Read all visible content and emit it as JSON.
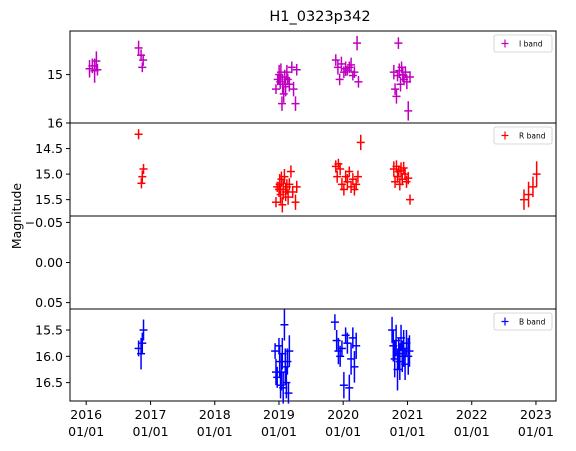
{
  "chart_data": {
    "type": "scatter",
    "title": "H1_0323p342",
    "ylabel": "Magnitude",
    "xlabel": "",
    "x_ticks": [
      "2016\n01/01",
      "2017\n01/01",
      "2018\n01/01",
      "2019\n01/01",
      "2020\n01/01",
      "2021\n01/01",
      "2022\n01/01",
      "2023\n01/01"
    ],
    "x_range": [
      "2015-10-01",
      "2023-04-25"
    ],
    "y_inverted": true,
    "grid": false,
    "panels": [
      {
        "name": "I band",
        "legend": "I band",
        "legend_position": "top-right",
        "color": "#c000c0",
        "ylim": [
          16.0,
          14.1
        ],
        "yticks": [
          "15",
          "16"
        ],
        "points": [
          {
            "x": "2016-01-20",
            "y": 14.88,
            "e": 0.18
          },
          {
            "x": "2016-02-05",
            "y": 14.82,
            "e": 0.15
          },
          {
            "x": "2016-02-18",
            "y": 14.92,
            "e": 0.25
          },
          {
            "x": "2016-02-28",
            "y": 14.72,
            "e": 0.2
          },
          {
            "x": "2016-03-05",
            "y": 14.9,
            "e": 0.12
          },
          {
            "x": "2016-10-25",
            "y": 14.45,
            "e": 0.15
          },
          {
            "x": "2016-11-08",
            "y": 14.6,
            "e": 0.12
          },
          {
            "x": "2016-11-15",
            "y": 14.85,
            "e": 0.1
          },
          {
            "x": "2016-11-20",
            "y": 14.7,
            "e": 0.12
          },
          {
            "x": "2018-12-15",
            "y": 15.3,
            "e": 0.1
          },
          {
            "x": "2018-12-25",
            "y": 15.1,
            "e": 0.12
          },
          {
            "x": "2019-01-02",
            "y": 15.0,
            "e": 0.2
          },
          {
            "x": "2019-01-08",
            "y": 15.15,
            "e": 0.15
          },
          {
            "x": "2019-01-12",
            "y": 14.95,
            "e": 0.18
          },
          {
            "x": "2019-01-18",
            "y": 15.6,
            "e": 0.15
          },
          {
            "x": "2019-01-22",
            "y": 15.2,
            "e": 0.2
          },
          {
            "x": "2019-01-28",
            "y": 15.4,
            "e": 0.18
          },
          {
            "x": "2019-02-03",
            "y": 15.05,
            "e": 0.15
          },
          {
            "x": "2019-02-08",
            "y": 15.25,
            "e": 0.2
          },
          {
            "x": "2019-02-15",
            "y": 14.95,
            "e": 0.15
          },
          {
            "x": "2019-02-20",
            "y": 15.1,
            "e": 0.12
          },
          {
            "x": "2019-03-01",
            "y": 15.2,
            "e": 0.15
          },
          {
            "x": "2019-03-15",
            "y": 14.85,
            "e": 0.12
          },
          {
            "x": "2019-03-25",
            "y": 15.3,
            "e": 0.15
          },
          {
            "x": "2019-04-05",
            "y": 15.6,
            "e": 0.15
          },
          {
            "x": "2019-04-12",
            "y": 14.9,
            "e": 0.12
          },
          {
            "x": "2019-11-20",
            "y": 14.7,
            "e": 0.12
          },
          {
            "x": "2019-12-02",
            "y": 14.85,
            "e": 0.15
          },
          {
            "x": "2019-12-12",
            "y": 15.1,
            "e": 0.12
          },
          {
            "x": "2019-12-22",
            "y": 14.78,
            "e": 0.15
          },
          {
            "x": "2020-01-05",
            "y": 14.95,
            "e": 0.12
          },
          {
            "x": "2020-01-15",
            "y": 14.88,
            "e": 0.15
          },
          {
            "x": "2020-01-25",
            "y": 14.92,
            "e": 0.1
          },
          {
            "x": "2020-02-05",
            "y": 14.85,
            "e": 0.12
          },
          {
            "x": "2020-02-15",
            "y": 14.8,
            "e": 0.15
          },
          {
            "x": "2020-02-25",
            "y": 15.02,
            "e": 0.1
          },
          {
            "x": "2020-03-05",
            "y": 14.95,
            "e": 0.12
          },
          {
            "x": "2020-03-20",
            "y": 14.35,
            "e": 0.15
          },
          {
            "x": "2020-03-28",
            "y": 15.15,
            "e": 0.12
          },
          {
            "x": "2020-10-15",
            "y": 14.95,
            "e": 0.15
          },
          {
            "x": "2020-10-22",
            "y": 15.3,
            "e": 0.12
          },
          {
            "x": "2020-10-30",
            "y": 15.45,
            "e": 0.15
          },
          {
            "x": "2020-11-05",
            "y": 15.02,
            "e": 0.12
          },
          {
            "x": "2020-11-10",
            "y": 14.35,
            "e": 0.12
          },
          {
            "x": "2020-11-15",
            "y": 14.92,
            "e": 0.15
          },
          {
            "x": "2020-11-22",
            "y": 15.2,
            "e": 0.15
          },
          {
            "x": "2020-11-28",
            "y": 14.85,
            "e": 0.12
          },
          {
            "x": "2020-12-05",
            "y": 15.0,
            "e": 0.15
          },
          {
            "x": "2020-12-12",
            "y": 15.1,
            "e": 0.12
          },
          {
            "x": "2020-12-20",
            "y": 14.95,
            "e": 0.12
          },
          {
            "x": "2020-12-28",
            "y": 15.15,
            "e": 0.15
          },
          {
            "x": "2021-01-05",
            "y": 15.75,
            "e": 0.2
          },
          {
            "x": "2021-01-15",
            "y": 15.05,
            "e": 0.12
          }
        ]
      },
      {
        "name": "R band",
        "legend": "R band",
        "legend_position": "top-right",
        "color": "#ff0000",
        "ylim": [
          15.82,
          14.0
        ],
        "yticks": [
          "14.5",
          "15.0",
          "15.5"
        ],
        "points": [
          {
            "x": "2016-10-25",
            "y": 14.22,
            "e": 0.1
          },
          {
            "x": "2016-11-10",
            "y": 15.18,
            "e": 0.1
          },
          {
            "x": "2016-11-15",
            "y": 15.05,
            "e": 0.12
          },
          {
            "x": "2016-11-22",
            "y": 14.9,
            "e": 0.1
          },
          {
            "x": "2018-12-15",
            "y": 15.55,
            "e": 0.1
          },
          {
            "x": "2018-12-22",
            "y": 15.25,
            "e": 0.1
          },
          {
            "x": "2019-01-01",
            "y": 15.3,
            "e": 0.15
          },
          {
            "x": "2019-01-05",
            "y": 15.2,
            "e": 0.2
          },
          {
            "x": "2019-01-10",
            "y": 15.4,
            "e": 0.18
          },
          {
            "x": "2019-01-15",
            "y": 15.1,
            "e": 0.15
          },
          {
            "x": "2019-01-20",
            "y": 15.6,
            "e": 0.15
          },
          {
            "x": "2019-01-25",
            "y": 15.3,
            "e": 0.2
          },
          {
            "x": "2019-02-01",
            "y": 15.05,
            "e": 0.15
          },
          {
            "x": "2019-02-08",
            "y": 15.35,
            "e": 0.18
          },
          {
            "x": "2019-02-15",
            "y": 15.25,
            "e": 0.15
          },
          {
            "x": "2019-02-22",
            "y": 15.45,
            "e": 0.15
          },
          {
            "x": "2019-03-01",
            "y": 15.2,
            "e": 0.12
          },
          {
            "x": "2019-03-10",
            "y": 14.95,
            "e": 0.12
          },
          {
            "x": "2019-03-20",
            "y": 15.35,
            "e": 0.12
          },
          {
            "x": "2019-04-05",
            "y": 15.55,
            "e": 0.15
          },
          {
            "x": "2019-04-12",
            "y": 15.25,
            "e": 0.12
          },
          {
            "x": "2019-11-20",
            "y": 14.85,
            "e": 0.12
          },
          {
            "x": "2019-11-28",
            "y": 15.05,
            "e": 0.12
          },
          {
            "x": "2019-12-05",
            "y": 14.8,
            "e": 0.1
          },
          {
            "x": "2019-12-15",
            "y": 14.9,
            "e": 0.12
          },
          {
            "x": "2019-12-25",
            "y": 15.2,
            "e": 0.12
          },
          {
            "x": "2020-01-05",
            "y": 15.3,
            "e": 0.12
          },
          {
            "x": "2020-01-15",
            "y": 15.05,
            "e": 0.12
          },
          {
            "x": "2020-01-25",
            "y": 15.15,
            "e": 0.15
          },
          {
            "x": "2020-02-05",
            "y": 14.95,
            "e": 0.1
          },
          {
            "x": "2020-02-15",
            "y": 15.25,
            "e": 0.12
          },
          {
            "x": "2020-02-25",
            "y": 15.1,
            "e": 0.12
          },
          {
            "x": "2020-03-05",
            "y": 15.3,
            "e": 0.12
          },
          {
            "x": "2020-03-15",
            "y": 15.2,
            "e": 0.12
          },
          {
            "x": "2020-03-25",
            "y": 15.05,
            "e": 0.12
          },
          {
            "x": "2020-04-10",
            "y": 14.38,
            "e": 0.15
          },
          {
            "x": "2020-10-15",
            "y": 14.9,
            "e": 0.15
          },
          {
            "x": "2020-10-22",
            "y": 15.15,
            "e": 0.12
          },
          {
            "x": "2020-10-30",
            "y": 14.85,
            "e": 0.12
          },
          {
            "x": "2020-11-05",
            "y": 15.05,
            "e": 0.12
          },
          {
            "x": "2020-11-12",
            "y": 14.95,
            "e": 0.12
          },
          {
            "x": "2020-11-18",
            "y": 15.2,
            "e": 0.12
          },
          {
            "x": "2020-11-25",
            "y": 14.92,
            "e": 0.15
          },
          {
            "x": "2020-12-02",
            "y": 15.1,
            "e": 0.12
          },
          {
            "x": "2020-12-10",
            "y": 14.88,
            "e": 0.12
          },
          {
            "x": "2020-12-18",
            "y": 15.0,
            "e": 0.12
          },
          {
            "x": "2020-12-26",
            "y": 15.15,
            "e": 0.12
          },
          {
            "x": "2021-01-05",
            "y": 15.08,
            "e": 0.12
          },
          {
            "x": "2021-01-15",
            "y": 15.5,
            "e": 0.1
          },
          {
            "x": "2022-10-25",
            "y": 15.5,
            "e": 0.2
          },
          {
            "x": "2022-11-20",
            "y": 15.4,
            "e": 0.25
          },
          {
            "x": "2022-12-15",
            "y": 15.25,
            "e": 0.2
          },
          {
            "x": "2023-01-05",
            "y": 15.0,
            "e": 0.25
          }
        ]
      },
      {
        "name": "empty",
        "legend": "",
        "color": "#000000",
        "ylim": [
          0.058,
          -0.058
        ],
        "yticks": [
          "0.05",
          "0.00",
          "−0.05"
        ],
        "ytick_values": [
          0.05,
          0.0,
          -0.05
        ],
        "points": []
      },
      {
        "name": "B band",
        "legend": "B band",
        "legend_position": "top-right",
        "color": "#0000ff",
        "ylim": [
          16.85,
          15.1
        ],
        "yticks": [
          "15.5",
          "16.0",
          "16.5"
        ],
        "points": [
          {
            "x": "2016-10-25",
            "y": 15.85,
            "e": 0.15
          },
          {
            "x": "2016-11-08",
            "y": 15.95,
            "e": 0.3
          },
          {
            "x": "2016-11-15",
            "y": 15.75,
            "e": 0.2
          },
          {
            "x": "2016-11-22",
            "y": 15.5,
            "e": 0.2
          },
          {
            "x": "2018-12-10",
            "y": 15.9,
            "e": 0.15
          },
          {
            "x": "2018-12-15",
            "y": 16.3,
            "e": 0.25
          },
          {
            "x": "2018-12-22",
            "y": 16.4,
            "e": 0.2
          },
          {
            "x": "2019-01-01",
            "y": 15.8,
            "e": 0.15
          },
          {
            "x": "2019-01-05",
            "y": 16.1,
            "e": 0.3
          },
          {
            "x": "2019-01-10",
            "y": 16.55,
            "e": 0.25
          },
          {
            "x": "2019-01-15",
            "y": 16.3,
            "e": 0.35
          },
          {
            "x": "2019-01-20",
            "y": 15.95,
            "e": 0.3
          },
          {
            "x": "2019-01-25",
            "y": 16.6,
            "e": 0.3
          },
          {
            "x": "2019-02-01",
            "y": 15.4,
            "e": 0.3
          },
          {
            "x": "2019-02-06",
            "y": 16.2,
            "e": 0.35
          },
          {
            "x": "2019-02-12",
            "y": 16.5,
            "e": 0.3
          },
          {
            "x": "2019-02-18",
            "y": 16.1,
            "e": 0.25
          },
          {
            "x": "2019-02-24",
            "y": 16.7,
            "e": 0.2
          },
          {
            "x": "2019-03-01",
            "y": 15.9,
            "e": 0.3
          },
          {
            "x": "2019-11-15",
            "y": 15.35,
            "e": 0.15
          },
          {
            "x": "2019-11-25",
            "y": 15.7,
            "e": 0.2
          },
          {
            "x": "2019-12-05",
            "y": 15.9,
            "e": 0.25
          },
          {
            "x": "2019-12-15",
            "y": 16.0,
            "e": 0.2
          },
          {
            "x": "2019-12-25",
            "y": 15.85,
            "e": 0.15
          },
          {
            "x": "2020-01-05",
            "y": 16.55,
            "e": 0.25
          },
          {
            "x": "2020-01-15",
            "y": 15.6,
            "e": 0.15
          },
          {
            "x": "2020-01-25",
            "y": 15.75,
            "e": 0.2
          },
          {
            "x": "2020-02-05",
            "y": 16.6,
            "e": 0.25
          },
          {
            "x": "2020-02-15",
            "y": 16.05,
            "e": 0.3
          },
          {
            "x": "2020-02-25",
            "y": 15.65,
            "e": 0.2
          },
          {
            "x": "2020-03-05",
            "y": 16.2,
            "e": 0.3
          },
          {
            "x": "2020-03-15",
            "y": 15.8,
            "e": 0.25
          },
          {
            "x": "2020-10-05",
            "y": 15.5,
            "e": 0.25
          },
          {
            "x": "2020-10-12",
            "y": 15.8,
            "e": 0.3
          },
          {
            "x": "2020-10-20",
            "y": 16.05,
            "e": 0.35
          },
          {
            "x": "2020-10-28",
            "y": 15.7,
            "e": 0.3
          },
          {
            "x": "2020-11-05",
            "y": 16.25,
            "e": 0.4
          },
          {
            "x": "2020-11-12",
            "y": 15.95,
            "e": 0.3
          },
          {
            "x": "2020-11-18",
            "y": 16.1,
            "e": 0.35
          },
          {
            "x": "2020-11-25",
            "y": 15.65,
            "e": 0.25
          },
          {
            "x": "2020-12-02",
            "y": 16.0,
            "e": 0.3
          },
          {
            "x": "2020-12-10",
            "y": 15.85,
            "e": 0.35
          },
          {
            "x": "2020-12-18",
            "y": 16.15,
            "e": 0.3
          },
          {
            "x": "2020-12-26",
            "y": 15.75,
            "e": 0.25
          },
          {
            "x": "2021-01-05",
            "y": 16.0,
            "e": 0.35
          },
          {
            "x": "2021-01-12",
            "y": 15.9,
            "e": 0.3
          }
        ]
      }
    ]
  }
}
